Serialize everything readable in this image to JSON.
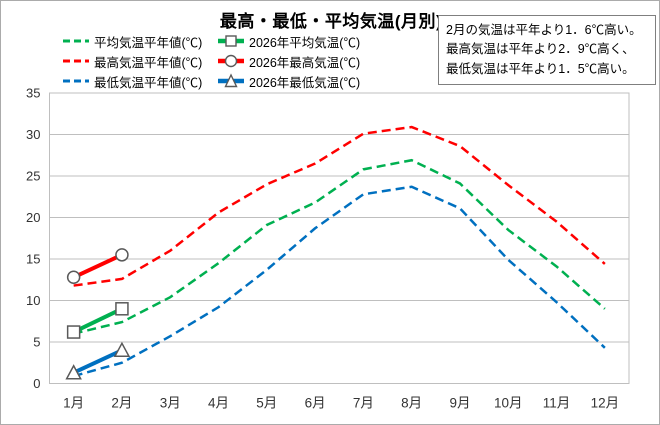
{
  "title": "最高・最低・平均気温(月別)",
  "annotation": {
    "lines": [
      "2月の気温は平年より1．6℃高い。",
      "最高気温は平年より2．9℃高く、",
      "最低気温は平年より1．5℃高い。"
    ]
  },
  "colors": {
    "average": "#00B050",
    "high": "#FF0000",
    "low": "#0070C0",
    "marker_outline": "#595959",
    "grid": "#BFBFBF",
    "axis_text": "#333333"
  },
  "legend": {
    "normal": [
      {
        "label": "平均気温平年値(℃)",
        "series": "average"
      },
      {
        "label": "最高気温平年値(℃)",
        "series": "high"
      },
      {
        "label": "最低気温平年値(℃)",
        "series": "low"
      }
    ],
    "year2026": [
      {
        "label": "2026年平均気温(℃)",
        "series": "average",
        "marker": "square"
      },
      {
        "label": "2026年最高気温(℃)",
        "series": "high",
        "marker": "circle"
      },
      {
        "label": "2026年最低気温(℃)",
        "series": "low",
        "marker": "triangle"
      }
    ]
  },
  "chart_data": {
    "type": "line",
    "title": "最高・最低・平均気温(月別)",
    "categories": [
      "1月",
      "2月",
      "3月",
      "4月",
      "5月",
      "6月",
      "7月",
      "8月",
      "9月",
      "10月",
      "11月",
      "12月"
    ],
    "xlabel": "",
    "ylabel": "",
    "ylim": [
      0,
      35
    ],
    "ytick_step": 5,
    "grid": true,
    "legend_position": "top-left",
    "series": [
      {
        "name": "平均気温平年値(℃)",
        "style": "dashed",
        "color_key": "average",
        "marker": null,
        "values": [
          6.0,
          7.4,
          10.4,
          14.5,
          19.1,
          21.8,
          25.8,
          26.9,
          24.1,
          18.5,
          14.1,
          9.0
        ]
      },
      {
        "name": "最高気温平年値(℃)",
        "style": "dashed",
        "color_key": "high",
        "marker": null,
        "values": [
          11.8,
          12.6,
          16.0,
          20.6,
          24.0,
          26.5,
          30.1,
          30.9,
          28.6,
          23.9,
          19.5,
          14.4
        ]
      },
      {
        "name": "最低気温平年値(℃)",
        "style": "dashed",
        "color_key": "low",
        "marker": null,
        "values": [
          0.9,
          2.5,
          5.7,
          9.2,
          13.7,
          18.7,
          22.8,
          23.7,
          21.1,
          14.9,
          9.8,
          4.3
        ]
      },
      {
        "name": "2026年平均気温(℃)",
        "style": "solid",
        "color_key": "average",
        "marker": "square",
        "values": [
          6.2,
          9.0,
          null,
          null,
          null,
          null,
          null,
          null,
          null,
          null,
          null,
          null
        ]
      },
      {
        "name": "2026年最高気温(℃)",
        "style": "solid",
        "color_key": "high",
        "marker": "circle",
        "values": [
          12.8,
          15.5,
          null,
          null,
          null,
          null,
          null,
          null,
          null,
          null,
          null,
          null
        ]
      },
      {
        "name": "2026年最低気温(℃)",
        "style": "solid",
        "color_key": "low",
        "marker": "triangle",
        "values": [
          1.3,
          4.0,
          null,
          null,
          null,
          null,
          null,
          null,
          null,
          null,
          null,
          null
        ]
      }
    ]
  }
}
